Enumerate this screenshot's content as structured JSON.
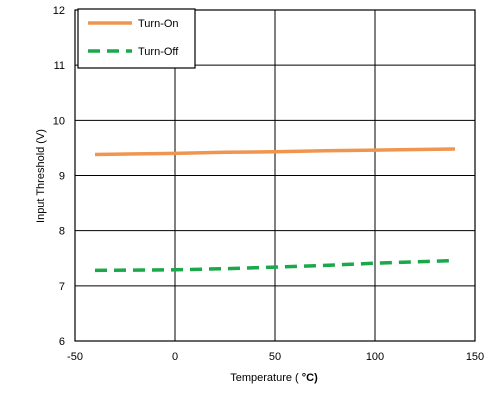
{
  "chart_data": {
    "type": "line",
    "xlabel_text": "Temperature ( ",
    "xlabel_unit": "°C)",
    "ylabel": "Input Threshold (V)",
    "xlim": [
      -50,
      150
    ],
    "ylim": [
      6,
      12
    ],
    "xticks": [
      -50,
      0,
      50,
      100,
      150
    ],
    "yticks": [
      6,
      7,
      8,
      9,
      10,
      11,
      12
    ],
    "grid": true,
    "legend_position": "top-left",
    "series": [
      {
        "name": "Turn-On",
        "color": "#f0954f",
        "dash": "solid",
        "x": [
          -40,
          0,
          25,
          50,
          75,
          100,
          140
        ],
        "y": [
          9.38,
          9.4,
          9.42,
          9.43,
          9.45,
          9.46,
          9.48
        ]
      },
      {
        "name": "Turn-Off",
        "color": "#1aa84a",
        "dash": "dashed",
        "x": [
          -40,
          0,
          25,
          50,
          75,
          100,
          140
        ],
        "y": [
          7.28,
          7.29,
          7.31,
          7.34,
          7.37,
          7.41,
          7.46
        ]
      }
    ]
  }
}
